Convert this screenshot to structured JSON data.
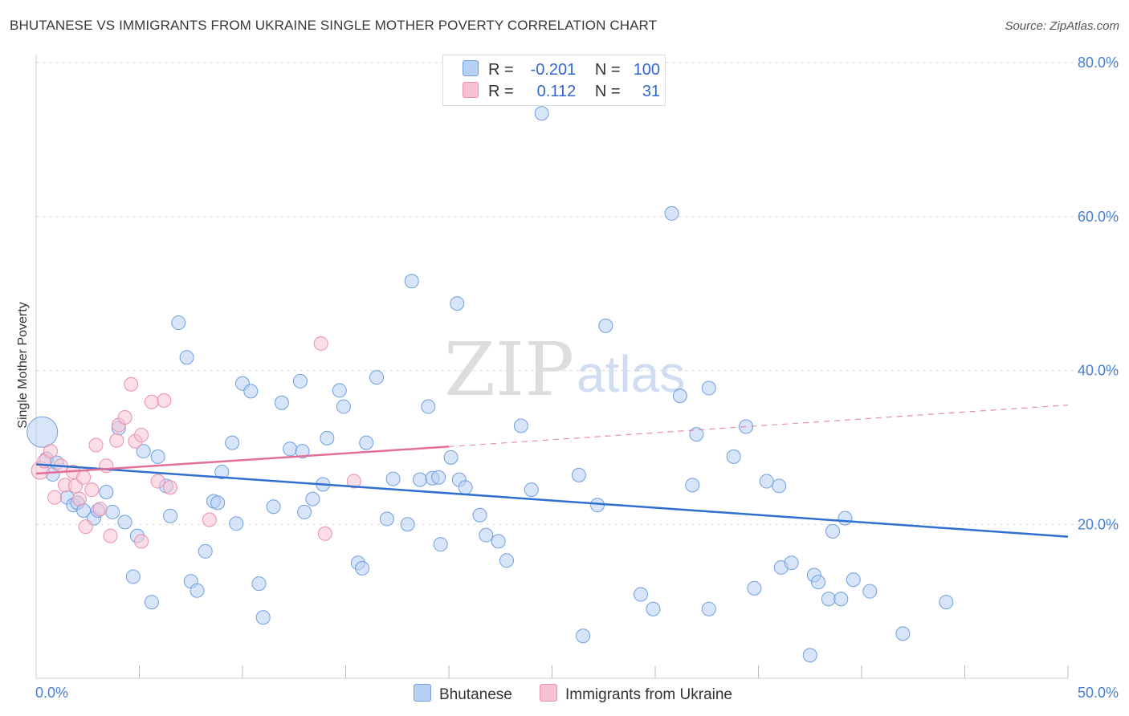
{
  "title": "BHUTANESE VS IMMIGRANTS FROM UKRAINE SINGLE MOTHER POVERTY CORRELATION CHART",
  "source": "Source: ZipAtlas.com",
  "watermark": {
    "zip": "ZIP",
    "atlas": "atlas"
  },
  "legend": {
    "rows": [
      {
        "r_label": "R =",
        "r_value": "-0.201",
        "n_label": "N =",
        "n_value": "100"
      },
      {
        "r_label": "R =",
        "r_value": "0.112",
        "n_label": "N =",
        "n_value": "31"
      }
    ]
  },
  "bottom_legend": {
    "series1": "Bhutanese",
    "series2": "Immigrants from Ukraine"
  },
  "colors": {
    "blue_fill": "#b8d0f3",
    "blue_stroke": "#6f9fe0",
    "blue_line": "#2e6fd0",
    "pink_fill": "#f7c3d3",
    "pink_stroke": "#eb8fae",
    "pink_line": "#e0709a",
    "tick_text": "#4a7fd0",
    "grid": "#dddddd"
  },
  "chart_data": {
    "type": "scatter",
    "title": "BHUTANESE VS IMMIGRANTS FROM UKRAINE SINGLE MOTHER POVERTY CORRELATION CHART",
    "xlabel": "",
    "ylabel": "Single Mother Poverty",
    "xlim": [
      0,
      50
    ],
    "ylim": [
      0,
      80
    ],
    "x_tick_labels": [
      "0.0%",
      "50.0%"
    ],
    "y_ticks": [
      20,
      40,
      60,
      80
    ],
    "y_tick_labels": [
      "20.0%",
      "40.0%",
      "60.0%",
      "80.0%"
    ],
    "grid": true,
    "series": [
      {
        "name": "Bhutanese",
        "R": -0.201,
        "N": 100,
        "trend": {
          "x0": 0,
          "y0": 27.8,
          "x1": 50,
          "y1": 18.4
        },
        "points": [
          [
            0.3,
            32.0
          ],
          [
            0.5,
            28.5
          ],
          [
            0.8,
            26.5
          ],
          [
            1.0,
            28.0
          ],
          [
            1.5,
            23.5
          ],
          [
            1.8,
            22.5
          ],
          [
            2.0,
            22.8
          ],
          [
            2.3,
            21.8
          ],
          [
            2.8,
            20.8
          ],
          [
            3.0,
            21.8
          ],
          [
            3.4,
            24.2
          ],
          [
            3.7,
            21.6
          ],
          [
            4.0,
            32.5
          ],
          [
            4.3,
            20.3
          ],
          [
            4.7,
            13.2
          ],
          [
            4.9,
            18.5
          ],
          [
            5.2,
            29.5
          ],
          [
            5.6,
            9.9
          ],
          [
            5.9,
            28.8
          ],
          [
            6.3,
            25.0
          ],
          [
            6.5,
            21.1
          ],
          [
            6.9,
            46.2
          ],
          [
            7.3,
            41.7
          ],
          [
            7.5,
            12.6
          ],
          [
            7.8,
            11.4
          ],
          [
            8.2,
            16.5
          ],
          [
            8.6,
            23.0
          ],
          [
            8.8,
            22.8
          ],
          [
            9.0,
            26.8
          ],
          [
            9.5,
            30.6
          ],
          [
            9.7,
            20.1
          ],
          [
            10.0,
            38.3
          ],
          [
            10.4,
            37.3
          ],
          [
            10.8,
            12.3
          ],
          [
            11.0,
            7.9
          ],
          [
            11.5,
            22.3
          ],
          [
            11.9,
            35.8
          ],
          [
            12.3,
            29.8
          ],
          [
            12.8,
            38.6
          ],
          [
            12.9,
            29.5
          ],
          [
            13.0,
            21.6
          ],
          [
            13.4,
            23.3
          ],
          [
            13.9,
            25.2
          ],
          [
            14.1,
            31.2
          ],
          [
            14.7,
            37.4
          ],
          [
            14.9,
            35.3
          ],
          [
            15.6,
            15.0
          ],
          [
            15.8,
            14.3
          ],
          [
            16.0,
            30.6
          ],
          [
            16.5,
            39.1
          ],
          [
            17.0,
            20.7
          ],
          [
            17.3,
            25.9
          ],
          [
            18.0,
            20.0
          ],
          [
            18.2,
            51.6
          ],
          [
            18.6,
            25.8
          ],
          [
            19.0,
            35.3
          ],
          [
            19.2,
            26.0
          ],
          [
            19.5,
            26.1
          ],
          [
            19.6,
            17.4
          ],
          [
            20.1,
            28.7
          ],
          [
            20.4,
            48.7
          ],
          [
            20.5,
            25.8
          ],
          [
            20.8,
            24.8
          ],
          [
            21.5,
            21.2
          ],
          [
            21.8,
            18.6
          ],
          [
            22.4,
            17.8
          ],
          [
            22.8,
            15.3
          ],
          [
            23.5,
            32.8
          ],
          [
            24.0,
            24.5
          ],
          [
            24.5,
            73.4
          ],
          [
            26.3,
            26.4
          ],
          [
            26.5,
            5.5
          ],
          [
            27.2,
            22.5
          ],
          [
            27.6,
            45.8
          ],
          [
            29.3,
            10.9
          ],
          [
            29.9,
            9.0
          ],
          [
            30.8,
            60.4
          ],
          [
            31.2,
            36.7
          ],
          [
            32.0,
            31.7
          ],
          [
            31.8,
            25.1
          ],
          [
            32.6,
            37.7
          ],
          [
            32.6,
            9.0
          ],
          [
            33.8,
            28.8
          ],
          [
            34.4,
            32.7
          ],
          [
            34.8,
            11.7
          ],
          [
            35.4,
            25.6
          ],
          [
            36.0,
            25.0
          ],
          [
            36.1,
            14.4
          ],
          [
            36.6,
            15.0
          ],
          [
            37.5,
            3.0
          ],
          [
            37.7,
            13.4
          ],
          [
            37.9,
            12.5
          ],
          [
            38.4,
            10.3
          ],
          [
            38.6,
            19.1
          ],
          [
            39.0,
            10.3
          ],
          [
            39.2,
            20.8
          ],
          [
            39.6,
            12.8
          ],
          [
            40.4,
            11.3
          ],
          [
            42.0,
            5.8
          ],
          [
            44.1,
            9.9
          ]
        ]
      },
      {
        "name": "Immigrants from Ukraine",
        "R": 0.112,
        "N": 31,
        "trend": {
          "x0": 0,
          "y0": 26.6,
          "x1": 20,
          "y1": 30.1,
          "dashed_to_x": 50,
          "dashed_to_y": 35.5
        },
        "points": [
          [
            0.2,
            27.0
          ],
          [
            0.4,
            28.2
          ],
          [
            0.7,
            29.5
          ],
          [
            0.9,
            23.5
          ],
          [
            1.2,
            27.6
          ],
          [
            1.4,
            25.1
          ],
          [
            1.8,
            26.8
          ],
          [
            1.9,
            25.0
          ],
          [
            2.1,
            23.3
          ],
          [
            2.3,
            26.1
          ],
          [
            2.4,
            19.7
          ],
          [
            2.7,
            24.5
          ],
          [
            2.9,
            30.3
          ],
          [
            3.1,
            22.0
          ],
          [
            3.4,
            27.6
          ],
          [
            3.6,
            18.5
          ],
          [
            3.9,
            30.9
          ],
          [
            4.0,
            32.9
          ],
          [
            4.3,
            33.9
          ],
          [
            4.6,
            38.2
          ],
          [
            4.8,
            30.8
          ],
          [
            5.1,
            31.6
          ],
          [
            5.1,
            17.8
          ],
          [
            5.6,
            35.9
          ],
          [
            5.9,
            25.6
          ],
          [
            6.2,
            36.1
          ],
          [
            6.5,
            24.8
          ],
          [
            8.4,
            20.6
          ],
          [
            13.8,
            43.5
          ],
          [
            14.0,
            18.8
          ],
          [
            15.4,
            25.6
          ]
        ]
      }
    ]
  }
}
